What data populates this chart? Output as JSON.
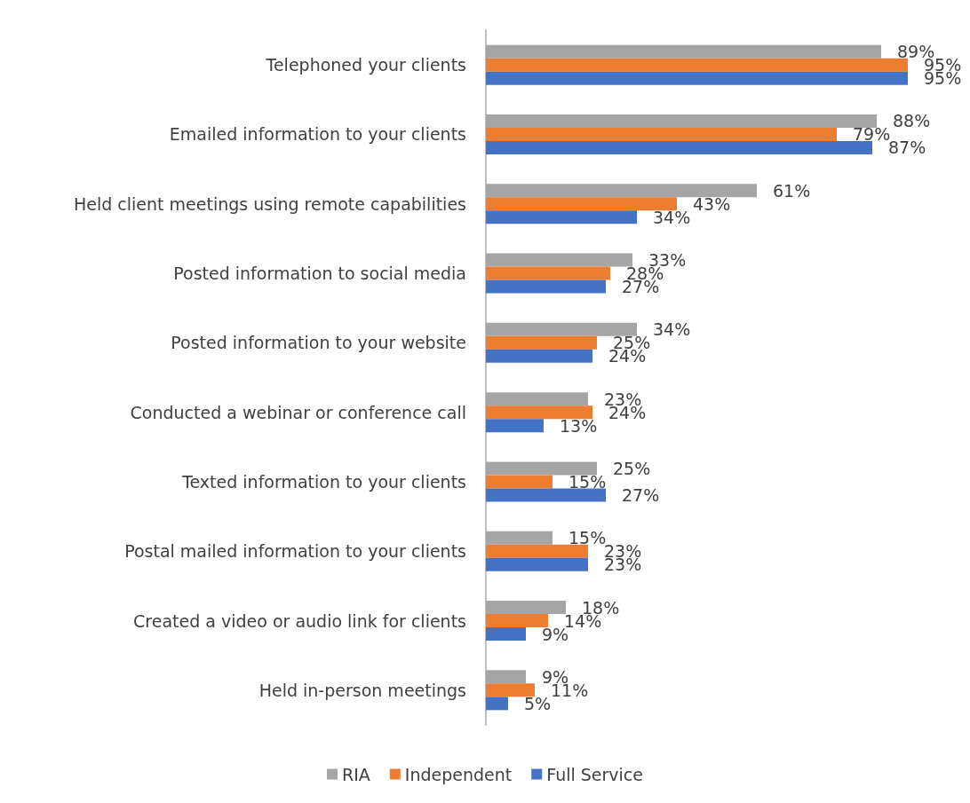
{
  "chart_data": {
    "type": "bar",
    "orientation": "horizontal",
    "legend": "bottom",
    "grid": false,
    "categories": [
      "Telephoned your clients",
      "Emailed information to your clients",
      "Held client meetings using remote capabilities",
      "Posted information to social media",
      "Posted information to your website",
      "Conducted a webinar or conference call",
      "Texted information to your clients",
      "Postal mailed information to your clients",
      "Created a video or audio link for clients",
      "Held in-person meetings"
    ],
    "series": [
      {
        "name": "RIA",
        "color": "#a5a5a5",
        "values": [
          89,
          88,
          61,
          33,
          34,
          23,
          25,
          15,
          18,
          9
        ],
        "value_labels": [
          "89%",
          "88%",
          "61%",
          "33%",
          "34%",
          "23%",
          "25%",
          "15%",
          "18%",
          "9%"
        ]
      },
      {
        "name": "Independent",
        "color": "#ed7d31",
        "values": [
          95,
          79,
          43,
          28,
          25,
          24,
          15,
          23,
          14,
          11
        ],
        "value_labels": [
          "95%",
          "79%",
          "43%",
          "28%",
          "25%",
          "24%",
          "15%",
          "23%",
          "14%",
          "11%"
        ]
      },
      {
        "name": "Full Service",
        "color": "#4472c4",
        "values": [
          95,
          87,
          34,
          27,
          24,
          13,
          27,
          23,
          9,
          5
        ],
        "value_labels": [
          "95%",
          "87%",
          "34%",
          "27%",
          "24%",
          "13%",
          "27%",
          "23%",
          "9%",
          "5%"
        ]
      }
    ]
  }
}
